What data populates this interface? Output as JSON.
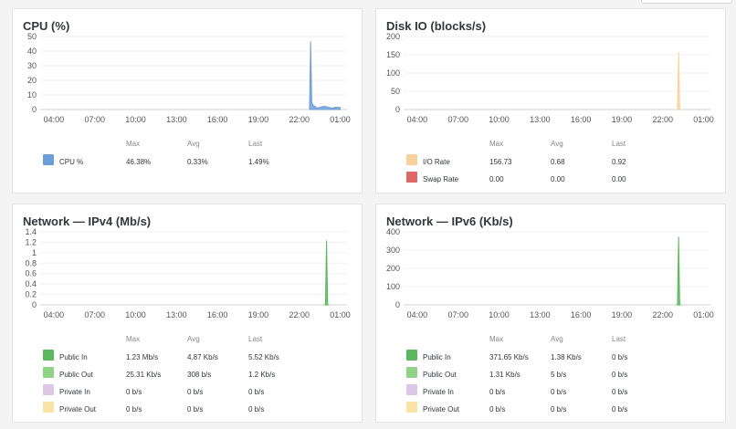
{
  "legend_headers": {
    "max": "Max",
    "avg": "Avg",
    "last": "Last"
  },
  "x_ticks": [
    "04:00",
    "07:00",
    "10:00",
    "13:00",
    "16:00",
    "19:00",
    "22:00",
    "01:00"
  ],
  "panels": {
    "cpu": {
      "title": "CPU (%)",
      "y_ticks": [
        "50",
        "40",
        "30",
        "20",
        "10",
        "0"
      ],
      "ylim": [
        0,
        50
      ],
      "fill_color": "#6e9ed8",
      "legend": [
        {
          "label": "CPU %",
          "color": "#6e9ed8",
          "max": "46.38%",
          "avg": "0.33%",
          "last": "1.49%"
        }
      ]
    },
    "disk": {
      "title": "Disk IO (blocks/s)",
      "y_ticks": [
        "200",
        "150",
        "100",
        "50",
        "0"
      ],
      "ylim": [
        0,
        200
      ],
      "fill_color": "#f6c98a",
      "legend": [
        {
          "label": "I/O Rate",
          "color": "#f9d19a",
          "max": "156.73",
          "avg": "0.68",
          "last": "0.92"
        },
        {
          "label": "Swap Rate",
          "color": "#e06767",
          "max": "0.00",
          "avg": "0.00",
          "last": "0.00"
        }
      ]
    },
    "ipv4": {
      "title": "Network — IPv4 (Mb/s)",
      "y_ticks": [
        "1.4",
        "1.2",
        "1",
        "0.8",
        "0.6",
        "0.4",
        "0.2",
        "0"
      ],
      "ylim": [
        0,
        1.4
      ],
      "fill_color": "#5cb85c",
      "legend": [
        {
          "label": "Public In",
          "color": "#5cb85c",
          "max": "1.23 Mb/s",
          "avg": "4.87 Kb/s",
          "last": "5.52 Kb/s"
        },
        {
          "label": "Public Out",
          "color": "#8fd585",
          "max": "25.31 Kb/s",
          "avg": "308 b/s",
          "last": "1.2 Kb/s"
        },
        {
          "label": "Private In",
          "color": "#ddc7e6",
          "max": "0 b/s",
          "avg": "0 b/s",
          "last": "0 b/s"
        },
        {
          "label": "Private Out",
          "color": "#fbe3a6",
          "max": "0 b/s",
          "avg": "0 b/s",
          "last": "0 b/s"
        }
      ]
    },
    "ipv6": {
      "title": "Network — IPv6 (Kb/s)",
      "y_ticks": [
        "400",
        "300",
        "200",
        "100",
        "0"
      ],
      "ylim": [
        0,
        400
      ],
      "fill_color": "#5cb85c",
      "legend": [
        {
          "label": "Public In",
          "color": "#5cb85c",
          "max": "371.65 Kb/s",
          "avg": "1.38 Kb/s",
          "last": "0 b/s"
        },
        {
          "label": "Public Out",
          "color": "#8fd585",
          "max": "1.31 Kb/s",
          "avg": "5 b/s",
          "last": "0 b/s"
        },
        {
          "label": "Private In",
          "color": "#ddc7e6",
          "max": "0 b/s",
          "avg": "0 b/s",
          "last": "0 b/s"
        },
        {
          "label": "Private Out",
          "color": "#fbe3a6",
          "max": "0 b/s",
          "avg": "0 b/s",
          "last": "0 b/s"
        }
      ]
    }
  },
  "chart_data": [
    {
      "type": "area",
      "title": "CPU (%)",
      "x_ticks": [
        "04:00",
        "07:00",
        "10:00",
        "13:00",
        "16:00",
        "19:00",
        "22:00",
        "01:00"
      ],
      "ylim": [
        0,
        50
      ],
      "series": [
        {
          "name": "CPU %",
          "x": [
            "22:45",
            "22:50",
            "22:55",
            "23:00",
            "23:10",
            "23:20",
            "23:40",
            "00:00",
            "00:20",
            "00:40",
            "01:00"
          ],
          "values": [
            0,
            46.38,
            5,
            3,
            2,
            1,
            2,
            2,
            1,
            1.5,
            1.49
          ]
        }
      ]
    },
    {
      "type": "area",
      "title": "Disk IO (blocks/s)",
      "x_ticks": [
        "04:00",
        "07:00",
        "10:00",
        "13:00",
        "16:00",
        "19:00",
        "22:00",
        "01:00"
      ],
      "ylim": [
        0,
        200
      ],
      "series": [
        {
          "name": "I/O Rate",
          "x": [
            "23:00",
            "23:05",
            "23:10",
            "23:15",
            "23:20"
          ],
          "values": [
            0,
            0,
            156.73,
            0,
            0
          ]
        },
        {
          "name": "Swap Rate",
          "x": [
            "23:00",
            "23:20"
          ],
          "values": [
            0,
            0
          ]
        }
      ]
    },
    {
      "type": "area",
      "title": "Network — IPv4 (Mb/s)",
      "x_ticks": [
        "04:00",
        "07:00",
        "10:00",
        "13:00",
        "16:00",
        "19:00",
        "22:00",
        "01:00"
      ],
      "ylim": [
        0,
        1.4
      ],
      "series": [
        {
          "name": "Public In",
          "x": [
            "23:50",
            "23:55",
            "00:00",
            "00:05",
            "00:10"
          ],
          "values": [
            0,
            0,
            1.23,
            0,
            0
          ]
        },
        {
          "name": "Public Out",
          "x": [
            "23:50",
            "00:10"
          ],
          "values": [
            0,
            0
          ]
        },
        {
          "name": "Private In",
          "x": [
            "23:50",
            "00:10"
          ],
          "values": [
            0,
            0
          ]
        },
        {
          "name": "Private Out",
          "x": [
            "23:50",
            "00:10"
          ],
          "values": [
            0,
            0
          ]
        }
      ]
    },
    {
      "type": "area",
      "title": "Network — IPv6 (Kb/s)",
      "x_ticks": [
        "04:00",
        "07:00",
        "10:00",
        "13:00",
        "16:00",
        "19:00",
        "22:00",
        "01:00"
      ],
      "ylim": [
        0,
        400
      ],
      "series": [
        {
          "name": "Public In",
          "x": [
            "23:00",
            "23:05",
            "23:10",
            "23:15",
            "23:20"
          ],
          "values": [
            0,
            0,
            371.65,
            0,
            0
          ]
        },
        {
          "name": "Public Out",
          "x": [
            "23:00",
            "23:20"
          ],
          "values": [
            0,
            0
          ]
        },
        {
          "name": "Private In",
          "x": [
            "23:00",
            "23:20"
          ],
          "values": [
            0,
            0
          ]
        },
        {
          "name": "Private Out",
          "x": [
            "23:00",
            "23:20"
          ],
          "values": [
            0,
            0
          ]
        }
      ]
    }
  ]
}
